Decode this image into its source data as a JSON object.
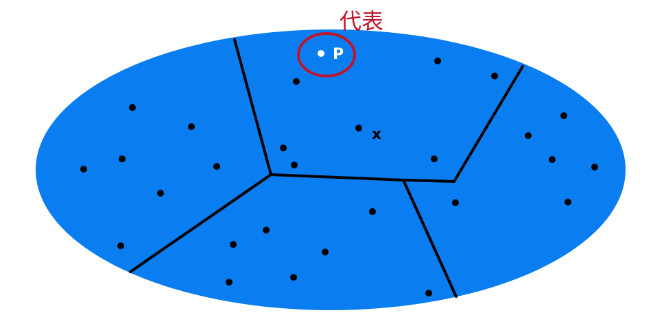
{
  "annotation": {
    "label": "代表",
    "color": "#c0142a"
  },
  "points": {
    "representative_label": "P",
    "query_label": "x"
  },
  "colors": {
    "region_fill": "#0a7df0",
    "boundary": "#000000",
    "point": "#000000",
    "representative_point": "#ffffff"
  }
}
